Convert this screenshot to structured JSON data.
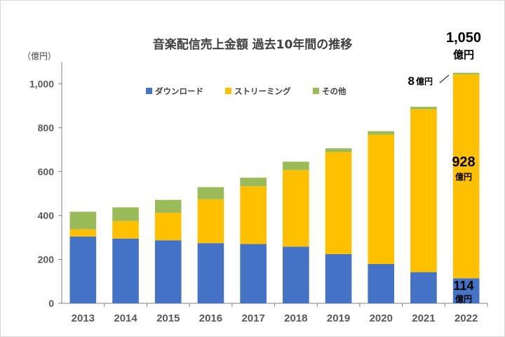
{
  "chart_data": {
    "type": "bar",
    "stacked": true,
    "title": "音楽配信売上金額 過去10年間の推移",
    "ylabel": "（億円）",
    "ylim": [
      0,
      1100
    ],
    "yticks": [
      0,
      200,
      400,
      600,
      800,
      1000
    ],
    "ytick_labels": [
      "0",
      "200",
      "400",
      "600",
      "800",
      "1,000"
    ],
    "categories": [
      "2013",
      "2014",
      "2015",
      "2016",
      "2017",
      "2018",
      "2019",
      "2020",
      "2021",
      "2022"
    ],
    "series": [
      {
        "name": "ダウンロード",
        "color": "#4472c4",
        "values": [
          304,
          295,
          287,
          274,
          270,
          258,
          224,
          179,
          142,
          114
        ]
      },
      {
        "name": "ストリーミング",
        "color": "#ffc000",
        "values": [
          33,
          80,
          125,
          200,
          263,
          349,
          465,
          589,
          742,
          928
        ]
      },
      {
        "name": "その他",
        "color": "#9bbb59",
        "values": [
          80,
          62,
          59,
          55,
          39,
          38,
          17,
          16,
          11,
          8
        ]
      }
    ],
    "legend_position": "top-center",
    "annotations": {
      "total_value": "1,050",
      "total_unit": "億円",
      "other_value": "8",
      "other_unit": "億円",
      "streaming_value": "928",
      "streaming_unit": "億円",
      "download_value": "114",
      "download_unit": "億円"
    }
  }
}
